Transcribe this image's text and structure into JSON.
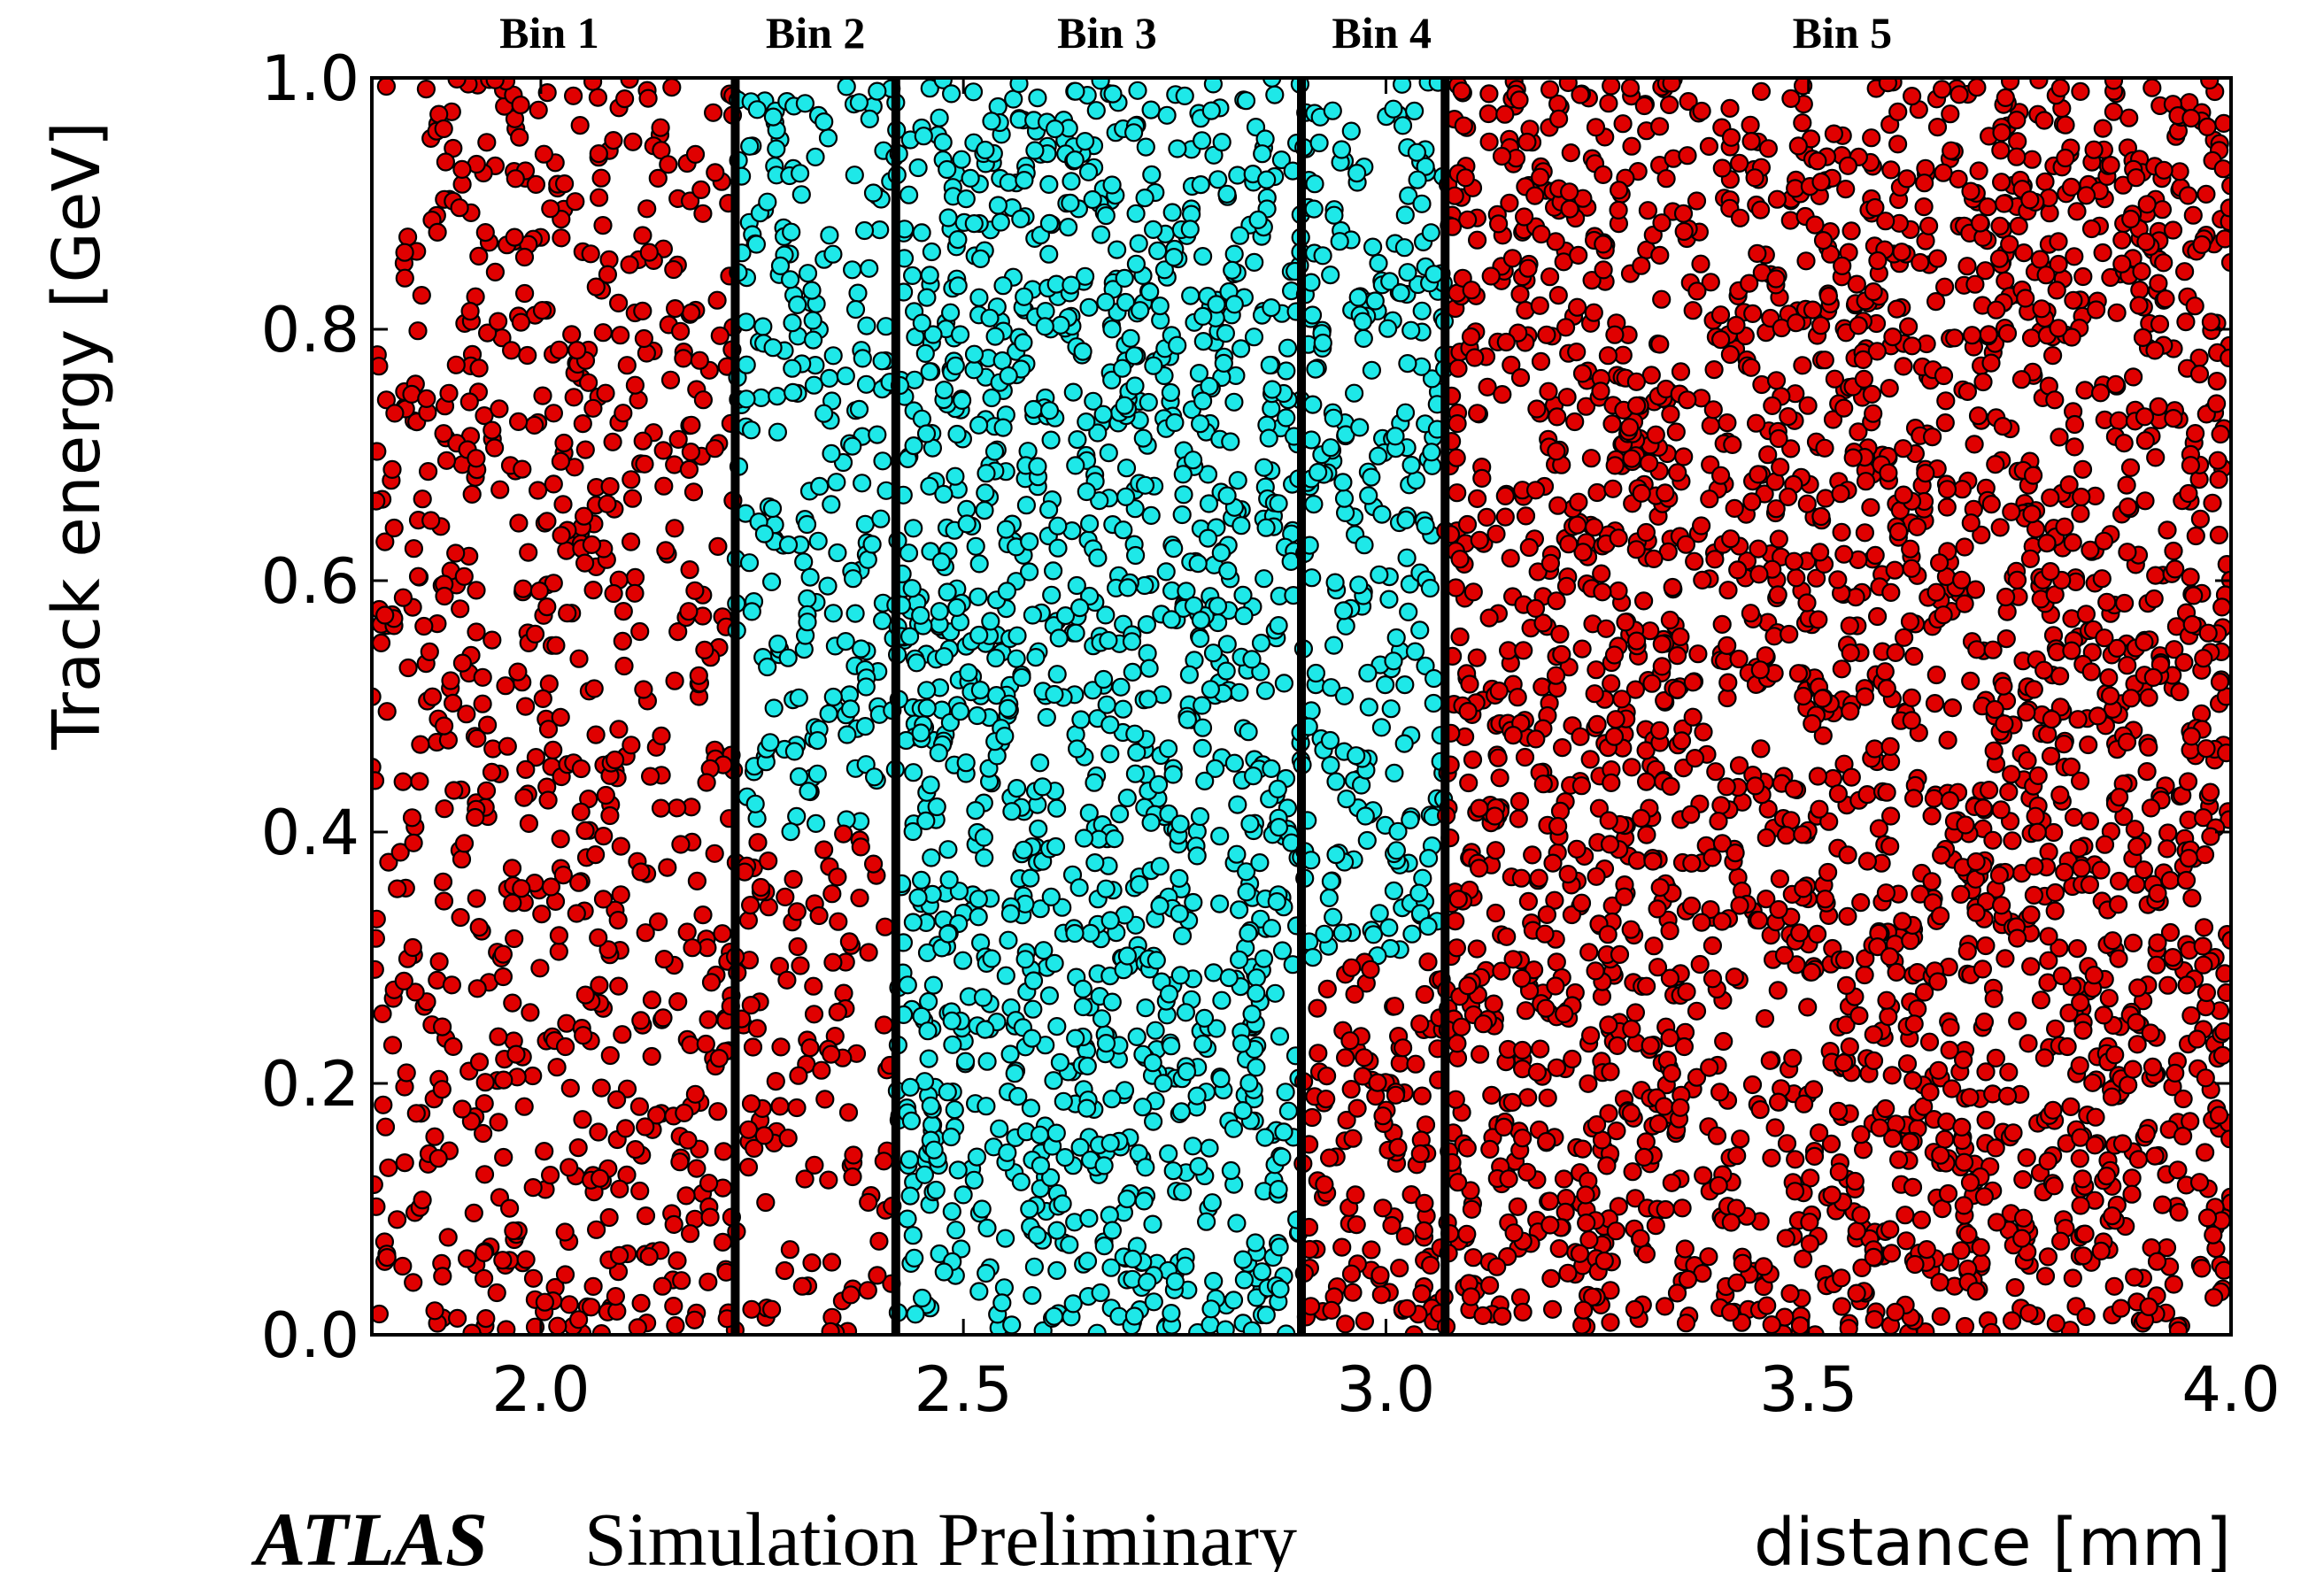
{
  "chart_data": {
    "type": "scatter",
    "xlabel": "distance [mm]",
    "ylabel": "Track energy [GeV]",
    "xlim": [
      1.8,
      4.0
    ],
    "ylim": [
      0.0,
      1.0
    ],
    "x_ticks": [
      "2.0",
      "2.5",
      "3.0",
      "3.5",
      "4.0"
    ],
    "x_tick_values": [
      2.0,
      2.5,
      3.0,
      3.5,
      4.0
    ],
    "y_ticks": [
      "0.0",
      "0.2",
      "0.4",
      "0.6",
      "0.8",
      "1.0"
    ],
    "y_tick_values": [
      0.0,
      0.2,
      0.4,
      0.6,
      0.8,
      1.0
    ],
    "bin_edges": [
      2.23,
      2.42,
      2.9,
      3.07
    ],
    "bins": [
      {
        "label": "Bin 1",
        "center": 2.01
      },
      {
        "label": "Bin 2",
        "center": 2.325
      },
      {
        "label": "Bin 3",
        "center": 2.67
      },
      {
        "label": "Bin 4",
        "center": 2.995
      },
      {
        "label": "Bin 5",
        "center": 3.54
      }
    ],
    "series": [
      {
        "color": "#e00000",
        "x_range": [
          1.8,
          2.23
        ],
        "y_range": [
          0.0,
          1.0
        ],
        "n": 800
      },
      {
        "color": "#1ee8e8",
        "x_range": [
          2.23,
          2.42
        ],
        "y_range": [
          0.4,
          1.0
        ],
        "n": 240
      },
      {
        "color": "#e00000",
        "x_range": [
          2.23,
          2.42
        ],
        "y_range": [
          0.0,
          0.4
        ],
        "n": 120
      },
      {
        "color": "#1ee8e8",
        "x_range": [
          2.42,
          2.9
        ],
        "y_range": [
          0.0,
          1.0
        ],
        "n": 1400
      },
      {
        "color": "#1ee8e8",
        "x_range": [
          2.9,
          3.07
        ],
        "y_range": [
          0.3,
          1.0
        ],
        "n": 280
      },
      {
        "color": "#e00000",
        "x_range": [
          2.9,
          3.07
        ],
        "y_range": [
          0.0,
          0.3
        ],
        "n": 130
      },
      {
        "color": "#e00000",
        "x_range": [
          3.07,
          4.0
        ],
        "y_range": [
          0.0,
          1.0
        ],
        "n": 2700
      }
    ],
    "grid": false,
    "legend": "none"
  },
  "footer": {
    "experiment": "ATLAS",
    "status": "Simulation Preliminary"
  },
  "colors": {
    "signal": "#e00000",
    "background": "#1ee8e8",
    "edge": "#000000"
  }
}
